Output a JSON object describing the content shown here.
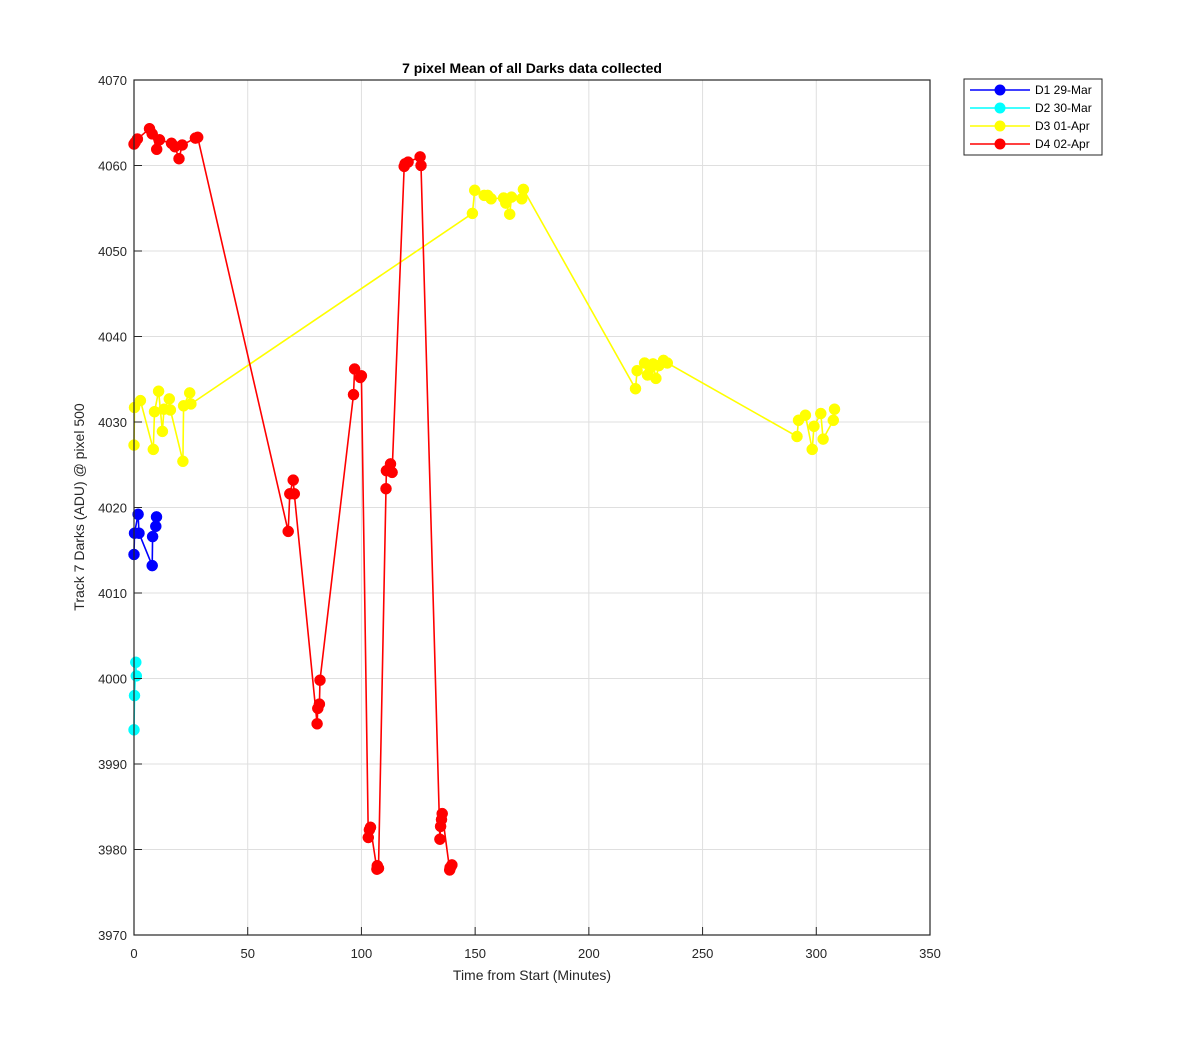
{
  "chart_data": {
    "type": "line",
    "title": "7 pixel Mean of all Darks data collected",
    "xlabel": "Time from Start (Minutes)",
    "ylabel": "Track 7 Darks (ADU) @ pixel 500",
    "xlim": [
      0,
      350
    ],
    "ylim": [
      3970,
      4070
    ],
    "xticks": [
      0,
      50,
      100,
      150,
      200,
      250,
      300,
      350
    ],
    "yticks": [
      3970,
      3980,
      3990,
      4000,
      4010,
      4020,
      4030,
      4040,
      4050,
      4060,
      4070
    ],
    "grid": true,
    "legend_location": "outside-top-right",
    "series": [
      {
        "name": "D1 29-Mar",
        "color": "#0000ff",
        "x": [
          0.0,
          0.2,
          1.8,
          2.2,
          8.0,
          8.2,
          9.6,
          9.9
        ],
        "y": [
          4014.5,
          4017.0,
          4019.2,
          4017.0,
          4013.2,
          4016.6,
          4017.8,
          4018.9
        ]
      },
      {
        "name": "D2 30-Mar",
        "color": "#00ffff",
        "x": [
          0.0,
          0.2,
          0.8,
          1.0
        ],
        "y": [
          3994.0,
          3998.0,
          4001.9,
          4000.3
        ]
      },
      {
        "name": "D3 01-Apr",
        "color": "#ffff00",
        "x": [
          0.0,
          0.2,
          2.8,
          8.5,
          9.0,
          10.8,
          12.5,
          13.2,
          15.5,
          16.0,
          21.5,
          21.8,
          24.5,
          25.0,
          148.8,
          149.8,
          154.0,
          155.5,
          157.0,
          162.5,
          163.5,
          165.2,
          166.0,
          170.5,
          171.2,
          220.5,
          221.2,
          224.5,
          225.8,
          227.0,
          228.2,
          229.5,
          230.8,
          232.8,
          234.5,
          291.5,
          292.2,
          295.2,
          298.2,
          299.0,
          302.0,
          303.0,
          307.5,
          308.0
        ],
        "y": [
          4027.3,
          4031.7,
          4032.5,
          4026.8,
          4031.2,
          4033.6,
          4028.9,
          4031.5,
          4032.7,
          4031.4,
          4025.4,
          4031.9,
          4033.4,
          4032.1,
          4054.4,
          4057.1,
          4056.5,
          4056.5,
          4056.1,
          4056.2,
          4055.6,
          4054.3,
          4056.3,
          4056.1,
          4057.2,
          4033.9,
          4036.0,
          4036.9,
          4035.5,
          4036.3,
          4036.8,
          4035.1,
          4036.6,
          4037.2,
          4036.9,
          4028.3,
          4030.2,
          4030.8,
          4026.8,
          4029.5,
          4031.0,
          4028.0,
          4030.2,
          4031.5
        ]
      },
      {
        "name": "D4 02-Apr",
        "color": "#ff0000",
        "x": [
          0.0,
          0.5,
          1.5,
          6.8,
          8.0,
          10.0,
          11.2,
          16.5,
          18.0,
          19.8,
          21.2,
          27.0,
          28.0,
          67.8,
          68.5,
          70.0,
          70.5,
          80.5,
          80.8,
          81.5,
          81.8,
          96.5,
          97.0,
          99.5,
          100.0,
          103.0,
          103.5,
          104.0,
          106.8,
          107.0,
          107.5,
          110.8,
          111.0,
          111.8,
          112.8,
          113.5,
          118.8,
          119.2,
          120.5,
          125.8,
          126.2,
          134.5,
          134.8,
          135.2,
          135.5,
          138.8,
          139.0,
          139.4,
          139.8
        ],
        "y": [
          4062.5,
          4062.7,
          4063.1,
          4064.3,
          4063.7,
          4061.9,
          4063.0,
          4062.6,
          4062.2,
          4060.8,
          4062.4,
          4063.2,
          4063.3,
          4017.2,
          4021.6,
          4023.2,
          4021.6,
          3994.7,
          3996.5,
          3997.0,
          3999.8,
          4033.2,
          4036.2,
          4035.2,
          4035.4,
          3981.4,
          3982.3,
          3982.6,
          3977.7,
          3978.1,
          3977.8,
          4022.2,
          4024.3,
          4024.4,
          4025.1,
          4024.1,
          4059.9,
          4060.2,
          4060.4,
          4061.0,
          4060.0,
          3981.2,
          3982.7,
          3983.5,
          3984.2,
          3977.6,
          3977.9,
          3978.0,
          3978.2
        ]
      }
    ]
  }
}
